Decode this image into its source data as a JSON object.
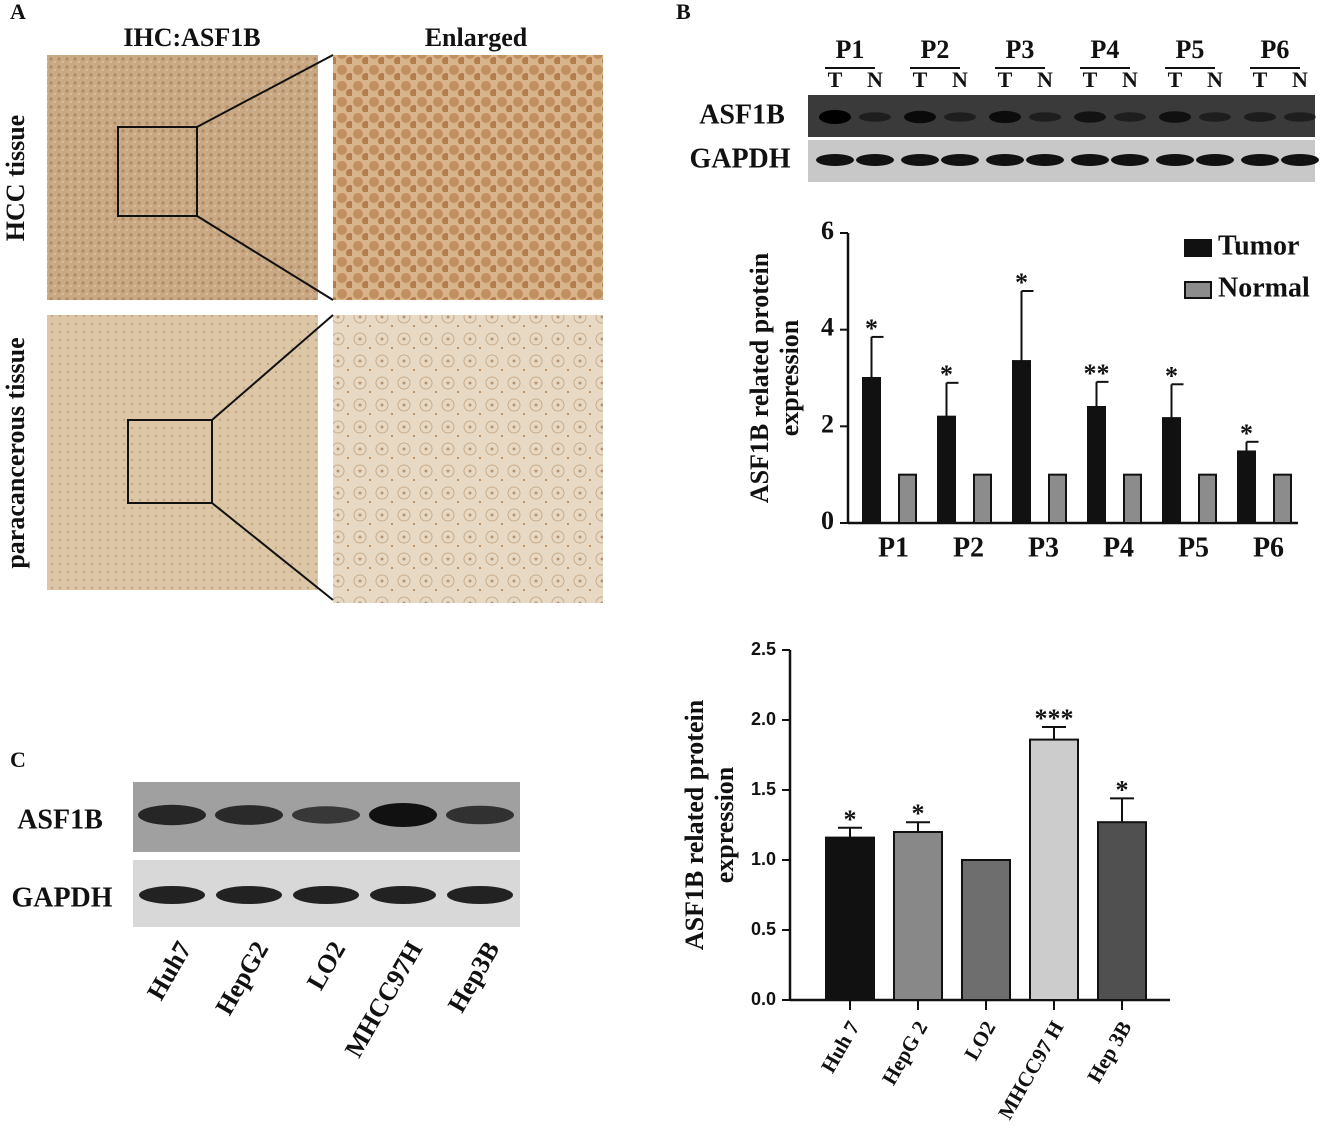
{
  "panels": {
    "A": {
      "label": "A",
      "column_titles": [
        "IHC:ASF1B",
        "Enlarged"
      ],
      "row_labels": [
        "HCC tissue",
        "paracancerous tissue"
      ]
    },
    "B": {
      "label": "B",
      "groups": [
        "P1",
        "P2",
        "P3",
        "P4",
        "P5",
        "P6"
      ],
      "lanes": [
        "T",
        "N"
      ],
      "rows": [
        "ASF1B",
        "GAPDH"
      ]
    },
    "C": {
      "label": "C",
      "rows": [
        "ASF1B",
        "GAPDH"
      ],
      "lanes": [
        "Huh7",
        "HepG2",
        "LO2",
        "MHCC97H",
        "Hep3B"
      ]
    }
  },
  "chart_data": [
    {
      "type": "bar",
      "y_label": "ASF1B related protein expression",
      "categories": [
        "P1",
        "P2",
        "P3",
        "P4",
        "P5",
        "P6"
      ],
      "series": [
        {
          "name": "Tumor",
          "color": "#111111",
          "values": [
            3.0,
            2.2,
            3.35,
            2.4,
            2.17,
            1.48
          ],
          "errors": [
            0.85,
            0.7,
            1.45,
            0.52,
            0.7,
            0.2
          ],
          "annotations": [
            "*",
            "*",
            "*",
            "**",
            "*",
            "*"
          ]
        },
        {
          "name": "Normal",
          "color": "#8c8c8c",
          "values": [
            1,
            1,
            1,
            1,
            1,
            1
          ]
        }
      ],
      "ylim": [
        0,
        6
      ],
      "yticks": [
        0,
        2,
        4,
        6
      ],
      "grid": false,
      "legend": "upper right"
    },
    {
      "type": "bar",
      "y_label": "ASF1B related protein expression",
      "categories": [
        "Huh 7",
        "HepG 2",
        "LO2",
        "MHCC97 H",
        "Hep 3B"
      ],
      "values": [
        1.16,
        1.2,
        1.0,
        1.86,
        1.27
      ],
      "errors": [
        0.07,
        0.07,
        null,
        0.09,
        0.17
      ],
      "annotations": [
        "*",
        "*",
        null,
        "***",
        "*"
      ],
      "colors": [
        "#111111",
        "#888888",
        "#6e6e6e",
        "#cccccc",
        "#505050"
      ],
      "ylim": [
        0,
        2.5
      ],
      "yticks": [
        {
          "value": 0,
          "label": "0.0"
        },
        0.5,
        {
          "value": 1,
          "label": "1.0"
        },
        1.5,
        {
          "value": 2,
          "label": "2.0"
        },
        2.5
      ],
      "grid": false
    }
  ]
}
